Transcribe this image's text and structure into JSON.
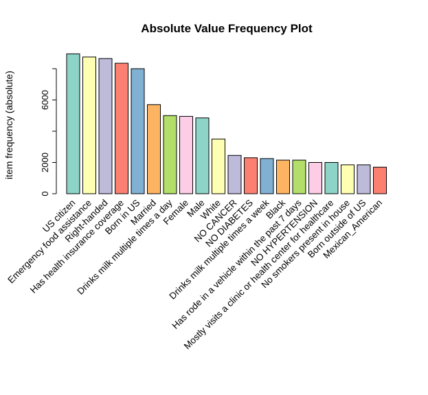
{
  "chart_data": {
    "type": "bar",
    "title": "Absolute Value Frequency Plot",
    "xlabel": "",
    "ylabel": "item frequency (absolute)",
    "ylim": [
      0,
      9000
    ],
    "yticks": [
      0,
      2000,
      6000
    ],
    "grid": false,
    "categories": [
      "US citizen",
      "Emergency food assistance",
      "Right-handed",
      "Has health insurance coverage",
      "Born in US",
      "Married",
      "Drinks milk multiple times a day",
      "Female",
      "Male",
      "White",
      "NO CANCER",
      "NO DIABETES",
      "Drinks milk multiple times a week",
      "Black",
      "Has rode in a vehicle within the past 7 days",
      "NO HYPERTENSION",
      "Mostly visits a clinic or health center for healthcare",
      "No smokers present in house",
      "Born outside of US",
      "Mexican_American"
    ],
    "values": [
      8950,
      8750,
      8650,
      8350,
      8000,
      5700,
      5000,
      4950,
      4850,
      3500,
      2450,
      2300,
      2250,
      2150,
      2150,
      2000,
      2000,
      1850,
      1850,
      1700
    ],
    "colors": [
      "#8DD3C7",
      "#FFFFB3",
      "#BEBADA",
      "#FB8072",
      "#80B1D3",
      "#FDB462",
      "#B3DE69",
      "#FCCDE5",
      "#8DD3C7",
      "#FFFFB3",
      "#BEBADA",
      "#FB8072",
      "#80B1D3",
      "#FDB462",
      "#B3DE69",
      "#FCCDE5",
      "#8DD3C7",
      "#FFFFB3",
      "#BEBADA",
      "#FB8072"
    ]
  }
}
